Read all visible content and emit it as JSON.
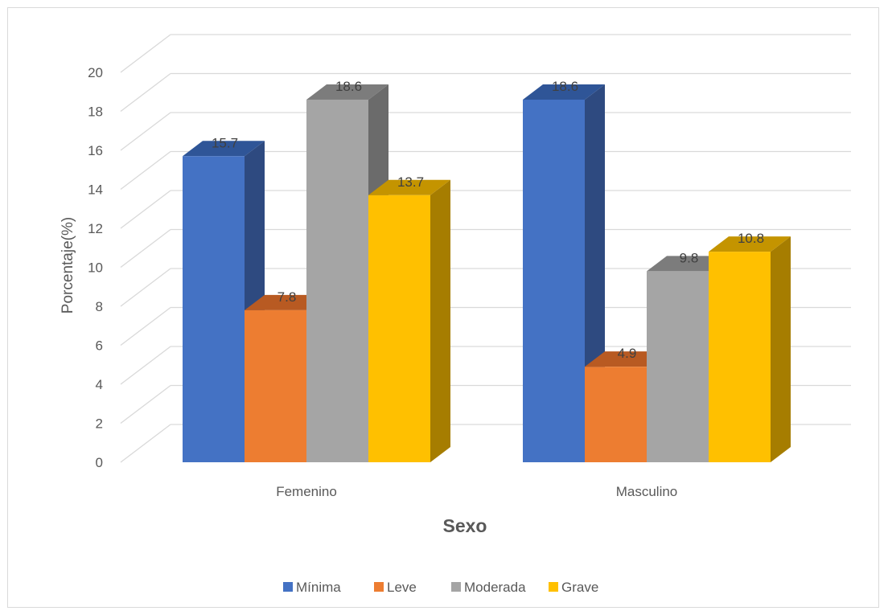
{
  "chart_data": {
    "type": "bar",
    "style": "3d-clustered-column",
    "categories": [
      "Femenino",
      "Masculino"
    ],
    "series": [
      {
        "name": "Mínima",
        "values": [
          15.7,
          18.6
        ],
        "color": "#4472C4",
        "side_color": "#2E4A80",
        "top_color": "#2F5597"
      },
      {
        "name": "Leve",
        "values": [
          7.8,
          4.9
        ],
        "color": "#ED7D31",
        "side_color": "#9C521F",
        "top_color": "#B85A22"
      },
      {
        "name": "Moderada",
        "values": [
          18.6,
          9.8
        ],
        "color": "#A5A5A5",
        "side_color": "#6B6B6B",
        "top_color": "#7C7C7C"
      },
      {
        "name": "Grave",
        "values": [
          13.7,
          10.8
        ],
        "color": "#FFC000",
        "side_color": "#A67D00",
        "top_color": "#C49400"
      }
    ],
    "ylim": [
      0,
      20
    ],
    "yticks": [
      0,
      2,
      4,
      6,
      8,
      10,
      12,
      14,
      16,
      18,
      20
    ],
    "xlabel": "Sexo",
    "ylabel": "Porcentaje(%)",
    "grid": true,
    "legend_position": "bottom",
    "data_labels": true
  }
}
